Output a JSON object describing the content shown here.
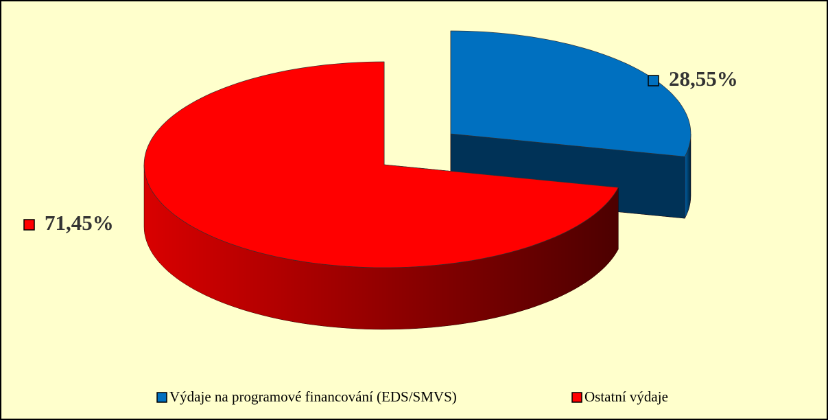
{
  "chart_data": {
    "type": "pie3d",
    "categories": [
      "Výdaje na programové financování (EDS/SMVS)",
      "Ostatní výdaje"
    ],
    "values": [
      28.55,
      71.45
    ],
    "value_labels": [
      "28,55%",
      "71,45%"
    ],
    "colors": [
      "#0070c0",
      "#ff0000"
    ],
    "legend": "bottom"
  }
}
